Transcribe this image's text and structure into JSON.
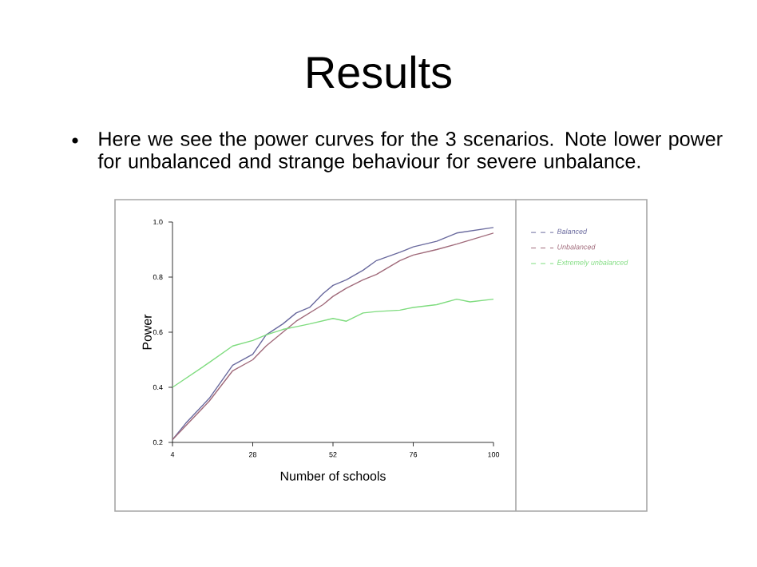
{
  "chart_data": {
    "type": "line",
    "title": "Results",
    "subtitle": "Here we see the power curves for the 3 scenarios. Note lower power for unbalanced and strange behaviour for severe unbalance.",
    "xlabel": "Number of schools",
    "ylabel": "Power",
    "xlim": [
      4,
      100
    ],
    "xticks": [
      4,
      28,
      52,
      76,
      100
    ],
    "ylim": [
      0.2,
      1.0
    ],
    "yticks": [
      0.2,
      0.4,
      0.6,
      0.8,
      {
        "value": 1.0,
        "label": "1.0"
      }
    ],
    "legend": "right",
    "marker": "none",
    "line_style": "solid",
    "grid": false,
    "series": [
      {
        "name": "Balanced",
        "color": "#6a6a9e",
        "x": [
          4,
          8,
          15,
          22,
          28,
          32,
          37,
          41,
          45,
          49,
          52,
          56,
          61,
          65,
          72,
          76,
          83,
          89,
          100
        ],
        "values": [
          0.21,
          0.27,
          0.36,
          0.48,
          0.52,
          0.59,
          0.63,
          0.67,
          0.69,
          0.74,
          0.77,
          0.79,
          0.825,
          0.86,
          0.89,
          0.91,
          0.93,
          0.96,
          0.98
        ]
      },
      {
        "name": "Unbalanced",
        "color": "#a06a7a",
        "x": [
          4,
          15,
          22,
          28,
          32,
          37,
          41,
          45,
          49,
          52,
          56,
          61,
          65,
          72,
          76,
          83,
          89,
          100
        ],
        "values": [
          0.21,
          0.35,
          0.46,
          0.5,
          0.55,
          0.6,
          0.64,
          0.67,
          0.7,
          0.73,
          0.76,
          0.79,
          0.81,
          0.86,
          0.88,
          0.9,
          0.92,
          0.96
        ]
      },
      {
        "name": "Extremely unbalanced",
        "color": "#7fdc7f",
        "x": [
          4,
          15,
          22,
          28,
          32,
          37,
          41,
          45,
          52,
          56,
          61,
          65,
          72,
          76,
          83,
          89,
          93,
          100
        ],
        "values": [
          0.4,
          0.49,
          0.55,
          0.57,
          0.59,
          0.61,
          0.62,
          0.63,
          0.65,
          0.64,
          0.67,
          0.675,
          0.68,
          0.69,
          0.7,
          0.72,
          0.71,
          0.72
        ]
      }
    ]
  }
}
